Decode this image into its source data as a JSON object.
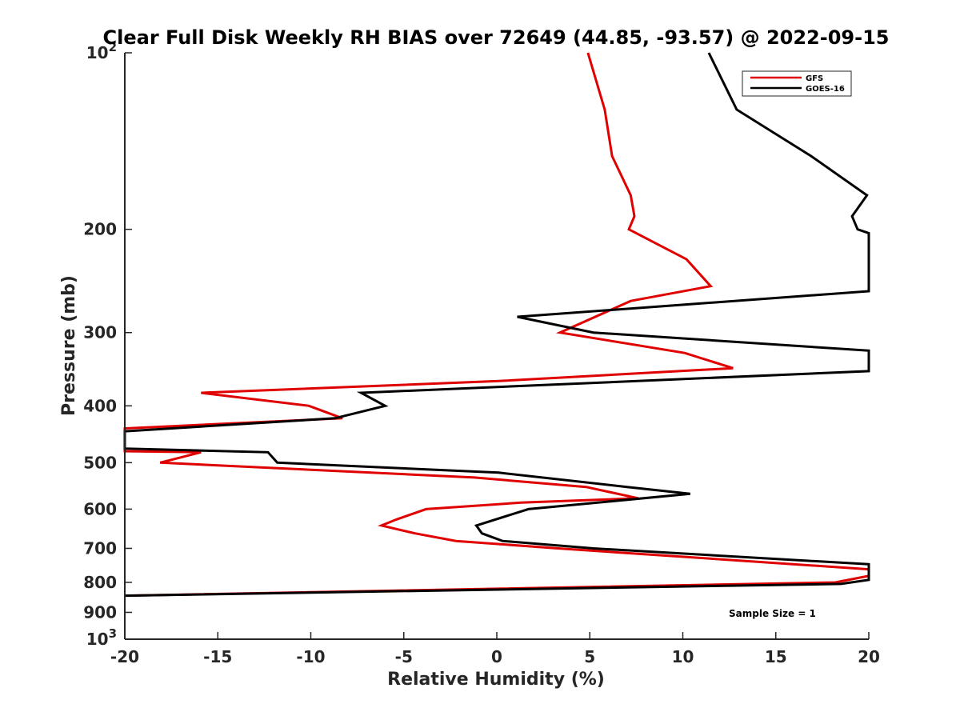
{
  "chart_data": {
    "type": "line",
    "title": "Clear Full Disk Weekly RH BIAS over 72649 (44.85, -93.57) @ 2022-09-15",
    "xlabel": "Relative Humidity (%)",
    "ylabel": "Pressure (mb)",
    "xlim": [
      -20,
      20
    ],
    "ylim": [
      100,
      1000
    ],
    "yscale": "log",
    "y_reversed": true,
    "grid": false,
    "legend_placement": "top-right",
    "x_ticks": [
      -20,
      -15,
      -10,
      -5,
      0,
      5,
      10,
      15,
      20
    ],
    "x_tick_labels": [
      "-20",
      "-15",
      "-10",
      "-5",
      "0",
      "5",
      "10",
      "15",
      "20"
    ],
    "y_ticks": [
      100,
      200,
      300,
      400,
      500,
      600,
      700,
      800,
      900,
      1000
    ],
    "y_tick_labels": [
      {
        "base": "10",
        "exp": "2"
      },
      {
        "base": "200",
        "exp": ""
      },
      {
        "base": "300",
        "exp": ""
      },
      {
        "base": "400",
        "exp": ""
      },
      {
        "base": "500",
        "exp": ""
      },
      {
        "base": "600",
        "exp": ""
      },
      {
        "base": "700",
        "exp": ""
      },
      {
        "base": "800",
        "exp": ""
      },
      {
        "base": "900",
        "exp": ""
      },
      {
        "base": "10",
        "exp": "3"
      }
    ],
    "annotation": "Sample Size = 1",
    "series": [
      {
        "name": "GFS",
        "color": "#e00000",
        "points": [
          [
            4.9,
            100
          ],
          [
            5.8,
            125
          ],
          [
            6.2,
            150
          ],
          [
            7.2,
            175
          ],
          [
            7.4,
            190
          ],
          [
            7.1,
            200
          ],
          [
            10.2,
            225
          ],
          [
            11.5,
            250
          ],
          [
            7.2,
            265
          ],
          [
            3.4,
            300
          ],
          [
            10.1,
            325
          ],
          [
            12.7,
            345
          ],
          [
            0,
            363
          ],
          [
            -15.9,
            380
          ],
          [
            -10.1,
            400
          ],
          [
            -8.3,
            420
          ],
          [
            -20,
            437
          ],
          [
            -20,
            478
          ],
          [
            -15.9,
            480
          ],
          [
            -18.1,
            500
          ],
          [
            -1.2,
            530
          ],
          [
            4.8,
            550
          ],
          [
            7.6,
            575
          ],
          [
            1.3,
            585
          ],
          [
            -3.8,
            600
          ],
          [
            -5.4,
            625
          ],
          [
            -6.2,
            640
          ],
          [
            -4.4,
            660
          ],
          [
            -2.2,
            680
          ],
          [
            3.3,
            700
          ],
          [
            20,
            760
          ],
          [
            20,
            780
          ],
          [
            18.2,
            800
          ],
          [
            -20,
            843
          ]
        ]
      },
      {
        "name": "GOES-16",
        "color": "#000000",
        "points": [
          [
            11.4,
            100
          ],
          [
            12.9,
            125
          ],
          [
            16.9,
            150
          ],
          [
            19.9,
            175
          ],
          [
            19.1,
            190
          ],
          [
            19.4,
            200
          ],
          [
            20,
            203
          ],
          [
            20,
            255
          ],
          [
            1.1,
            282
          ],
          [
            5.2,
            300
          ],
          [
            20,
            322
          ],
          [
            20,
            349
          ],
          [
            -7.3,
            380
          ],
          [
            -6,
            400
          ],
          [
            -8.7,
            420
          ],
          [
            -20,
            442
          ],
          [
            -20,
            473
          ],
          [
            -12.3,
            480
          ],
          [
            -11.8,
            500
          ],
          [
            0.1,
            520
          ],
          [
            7,
            550
          ],
          [
            10.4,
            565
          ],
          [
            1.7,
            600
          ],
          [
            -1.1,
            640
          ],
          [
            -0.8,
            660
          ],
          [
            0.3,
            680
          ],
          [
            5.2,
            700
          ],
          [
            20,
            745
          ],
          [
            20,
            792
          ],
          [
            18.5,
            805
          ],
          [
            -20,
            843
          ]
        ]
      }
    ]
  }
}
